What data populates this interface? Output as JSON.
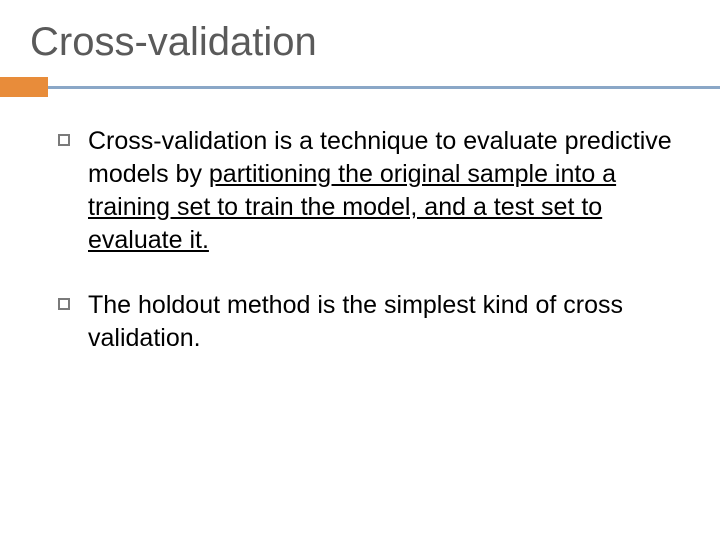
{
  "slide": {
    "title": "Cross-validation",
    "title_color": "#5a5a5a",
    "title_fontsize": 40,
    "accent_color": "#e88c3a",
    "rule_color": "#8aa7c7",
    "background_color": "#ffffff",
    "body_fontsize": 25,
    "body_color": "#000000",
    "bullets": [
      {
        "plain1": "Cross-validation is a technique to evaluate predictive models by ",
        "underlined": "partitioning the original sample into a training set to train the model, and a test set to evaluate it."
      },
      {
        "plain1": "The holdout method is the simplest kind of cross validation.",
        "underlined": ""
      }
    ]
  }
}
